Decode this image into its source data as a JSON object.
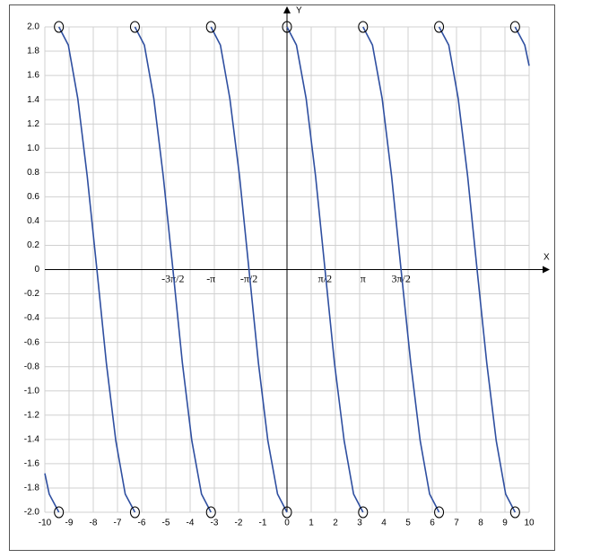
{
  "chart_data": {
    "type": "line",
    "x_label": "X",
    "y_label": "Y",
    "xlim": [
      -10,
      10
    ],
    "ylim": [
      -2,
      2
    ],
    "xticks": [
      -10,
      -9,
      -8,
      -7,
      -6,
      -5,
      -4,
      -3,
      -2,
      -1,
      0,
      1,
      2,
      3,
      4,
      5,
      6,
      7,
      8,
      9,
      10
    ],
    "yticks": [
      {
        "value": 2,
        "label": "2.0"
      },
      1.8,
      1.6,
      1.4,
      1.2,
      {
        "value": 1,
        "label": "1.0"
      },
      0.8,
      0.6,
      0.4,
      0.2,
      0,
      -0.2,
      -0.4,
      -0.6,
      -0.8,
      {
        "value": -1,
        "label": "-1.0"
      },
      -1.2,
      -1.4,
      -1.6,
      -1.8,
      {
        "value": -2,
        "label": "-2.0"
      }
    ],
    "grid": true,
    "color": "#2f4fa0",
    "annotations": [
      {
        "text": "-3π/2",
        "x": -4.71
      },
      {
        "text": "-π",
        "x": -3.14
      },
      {
        "text": "-π/2",
        "x": -1.57
      },
      {
        "text": "π/2",
        "x": 1.57
      },
      {
        "text": "π",
        "x": 3.14
      },
      {
        "text": "3π/2",
        "x": 4.71
      }
    ],
    "x": [
      -10,
      -9.82,
      -9.42,
      null,
      -9.42,
      -9.03,
      -8.64,
      -8.25,
      -7.85,
      -7.46,
      -7.07,
      -6.68,
      -6.28,
      null,
      -6.28,
      -5.89,
      -5.5,
      -5.11,
      -4.71,
      -4.32,
      -3.93,
      -3.53,
      -3.14,
      null,
      -3.14,
      -2.75,
      -2.36,
      -1.96,
      -1.57,
      -1.18,
      -0.79,
      -0.39,
      0,
      null,
      0,
      0.39,
      0.79,
      1.18,
      1.57,
      1.96,
      2.36,
      2.75,
      3.14,
      null,
      3.14,
      3.53,
      3.93,
      4.32,
      4.71,
      5.11,
      5.5,
      5.89,
      6.28,
      null,
      6.28,
      6.68,
      7.07,
      7.46,
      7.85,
      8.25,
      8.64,
      9.03,
      9.42,
      null,
      9.42,
      9.82,
      10
    ],
    "values": [
      -1.68,
      -1.85,
      -2,
      null,
      2,
      1.85,
      1.41,
      0.77,
      0,
      -0.77,
      -1.41,
      -1.85,
      -2,
      null,
      2,
      1.85,
      1.41,
      0.77,
      0,
      -0.77,
      -1.41,
      -1.85,
      -2,
      null,
      2,
      1.85,
      1.41,
      0.77,
      0,
      -0.77,
      -1.41,
      -1.85,
      -2,
      null,
      2,
      1.85,
      1.41,
      0.77,
      0,
      -0.77,
      -1.41,
      -1.85,
      -2,
      null,
      2,
      1.85,
      1.41,
      0.77,
      0,
      -0.77,
      -1.41,
      -1.85,
      -2,
      null,
      2,
      1.85,
      1.41,
      0.77,
      0,
      -0.77,
      -1.41,
      -1.85,
      -2,
      null,
      2,
      1.85,
      1.68
    ]
  }
}
